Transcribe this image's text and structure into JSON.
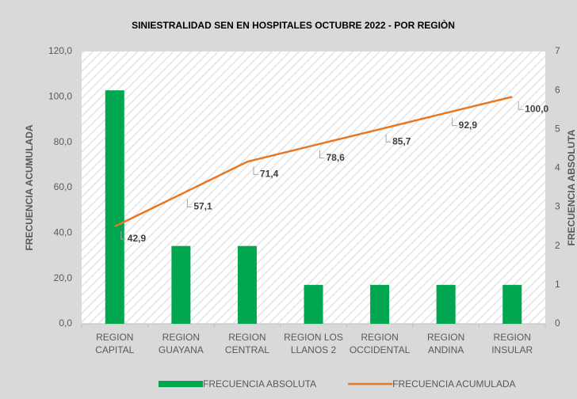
{
  "chart_data": {
    "type": "combo",
    "title": "SINIESTRALIDAD SEN EN HOSPITALES OCTUBRE 2022 - POR REGIÒN",
    "ylabel": "FRECUENCIA ACUMULADA",
    "y2label": "FRECUENCIA ABSOLUTA",
    "categories": [
      "REGION CAPITAL",
      "REGION GUAYANA",
      "REGION CENTRAL",
      "REGION LOS LLANOS 2",
      "REGION OCCIDENTAL",
      "REGION ANDINA",
      "REGION INSULAR"
    ],
    "series": [
      {
        "name": "FRECUENCIA ABSOLUTA",
        "type": "bar",
        "axis": "y2",
        "color": "#00a650",
        "values": [
          6,
          2,
          2,
          1,
          1,
          1,
          1
        ]
      },
      {
        "name": "FRECUENCIA ACUMULADA",
        "type": "line",
        "color": "#e87722",
        "values": [
          42.9,
          57.1,
          71.4,
          78.6,
          85.7,
          92.9,
          100.0
        ],
        "value_labels": [
          "42,9",
          "57,1",
          "71,4",
          "78,6",
          "85,7",
          "92,9",
          "100,0"
        ]
      }
    ],
    "ylim": [
      0,
      120
    ],
    "yticks": [
      {
        "value": 0,
        "label": "0,0"
      },
      {
        "value": 20,
        "label": "20,0"
      },
      {
        "value": 40,
        "label": "40,0"
      },
      {
        "value": 60,
        "label": "60,0"
      },
      {
        "value": 80,
        "label": "80,0"
      },
      {
        "value": 100,
        "label": "100,0"
      },
      {
        "value": 120,
        "label": "120,0"
      }
    ],
    "y2lim": [
      0,
      7
    ],
    "y2ticks": [
      0,
      1,
      2,
      3,
      4,
      5,
      6,
      7
    ],
    "legend": "bottom"
  }
}
